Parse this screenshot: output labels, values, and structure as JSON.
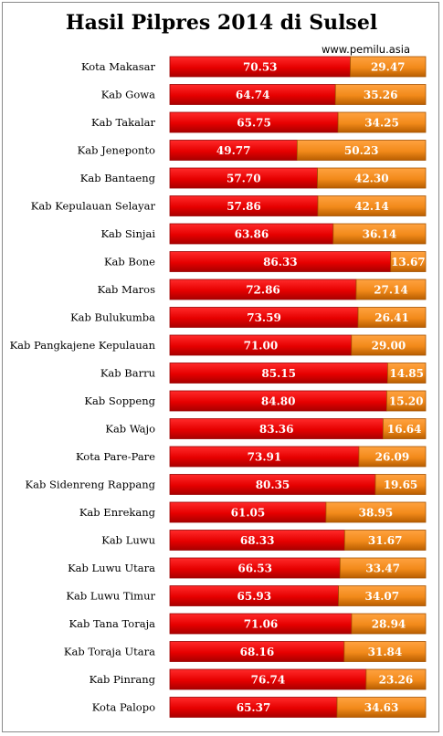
{
  "chart_data": {
    "type": "bar",
    "stacked": true,
    "orientation": "horizontal",
    "title": "Hasil Pilpres 2014 di Sulsel",
    "source": "www.pemilu.asia",
    "xlim": [
      0,
      100
    ],
    "grid": false,
    "legend": "none",
    "categories": [
      "Kota Makasar",
      "Kab Gowa",
      "Kab Takalar",
      "Kab Jeneponto",
      "Kab Bantaeng",
      "Kab Kepulauan  Selayar",
      "Kab Sinjai",
      "Kab Bone",
      "Kab Maros",
      "Kab Bulukumba",
      "Kab Pangkajene  Kepulauan",
      "Kab Barru",
      "Kab Soppeng",
      "Kab Wajo",
      "Kota Pare-Pare",
      "Kab Sidenreng  Rappang",
      "Kab Enrekang",
      "Kab Luwu",
      "Kab Luwu Utara",
      "Kab Luwu Timur",
      "Kab Tana Toraja",
      "Kab Toraja  Utara",
      "Kab Pinrang",
      "Kota Palopo"
    ],
    "series": [
      {
        "color": "#e60000",
        "values": [
          "70.53",
          "64.74",
          "65.75",
          "49.77",
          "57.70",
          "57.86",
          "63.86",
          "86.33",
          "72.86",
          "73.59",
          "71.00",
          "85.15",
          "84.80",
          "83.36",
          "73.91",
          "80.35",
          "61.05",
          "68.33",
          "66.53",
          "65.93",
          "71.06",
          "68.16",
          "76.74",
          "65.37"
        ]
      },
      {
        "color": "#f28a1a",
        "values": [
          "29.47",
          "35.26",
          "34.25",
          "50.23",
          "42.30",
          "42.14",
          "36.14",
          "13.67",
          "27.14",
          "26.41",
          "29.00",
          "14.85",
          "15.20",
          "16.64",
          "26.09",
          "19.65",
          "38.95",
          "31.67",
          "33.47",
          "34.07",
          "28.94",
          "31.84",
          "23.26",
          "34.63"
        ]
      }
    ]
  }
}
